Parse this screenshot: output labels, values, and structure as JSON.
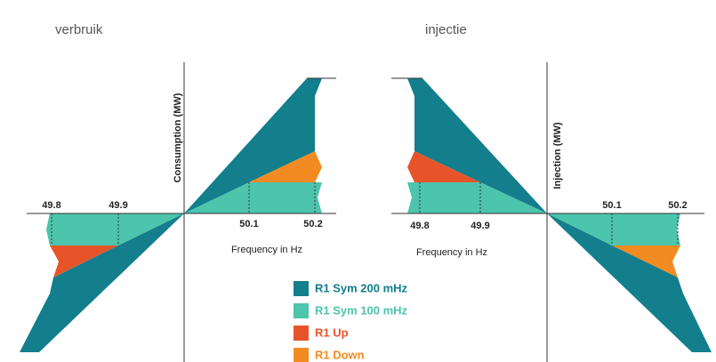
{
  "left": {
    "title": "verbruik",
    "axis_label": "Consumption (MW)",
    "x_axis_label": "Frequency in Hz",
    "ticks": [
      "49.8",
      "49.9",
      "50.1",
      "50.2"
    ]
  },
  "right": {
    "title": "injectie",
    "axis_label": "Injection (MW)",
    "x_axis_label": "Frequency in Hz",
    "ticks": [
      "49.8",
      "49.9",
      "50.1",
      "50.2"
    ]
  },
  "legend": [
    {
      "label": "R1 Sym 200 mHz",
      "color": "#137e8c"
    },
    {
      "label": "R1 Sym 100 mHz",
      "color": "#4dc4ac"
    },
    {
      "label": "R1 Up",
      "color": "#e8542a"
    },
    {
      "label": "R1 Down",
      "color": "#f28b22"
    }
  ]
}
